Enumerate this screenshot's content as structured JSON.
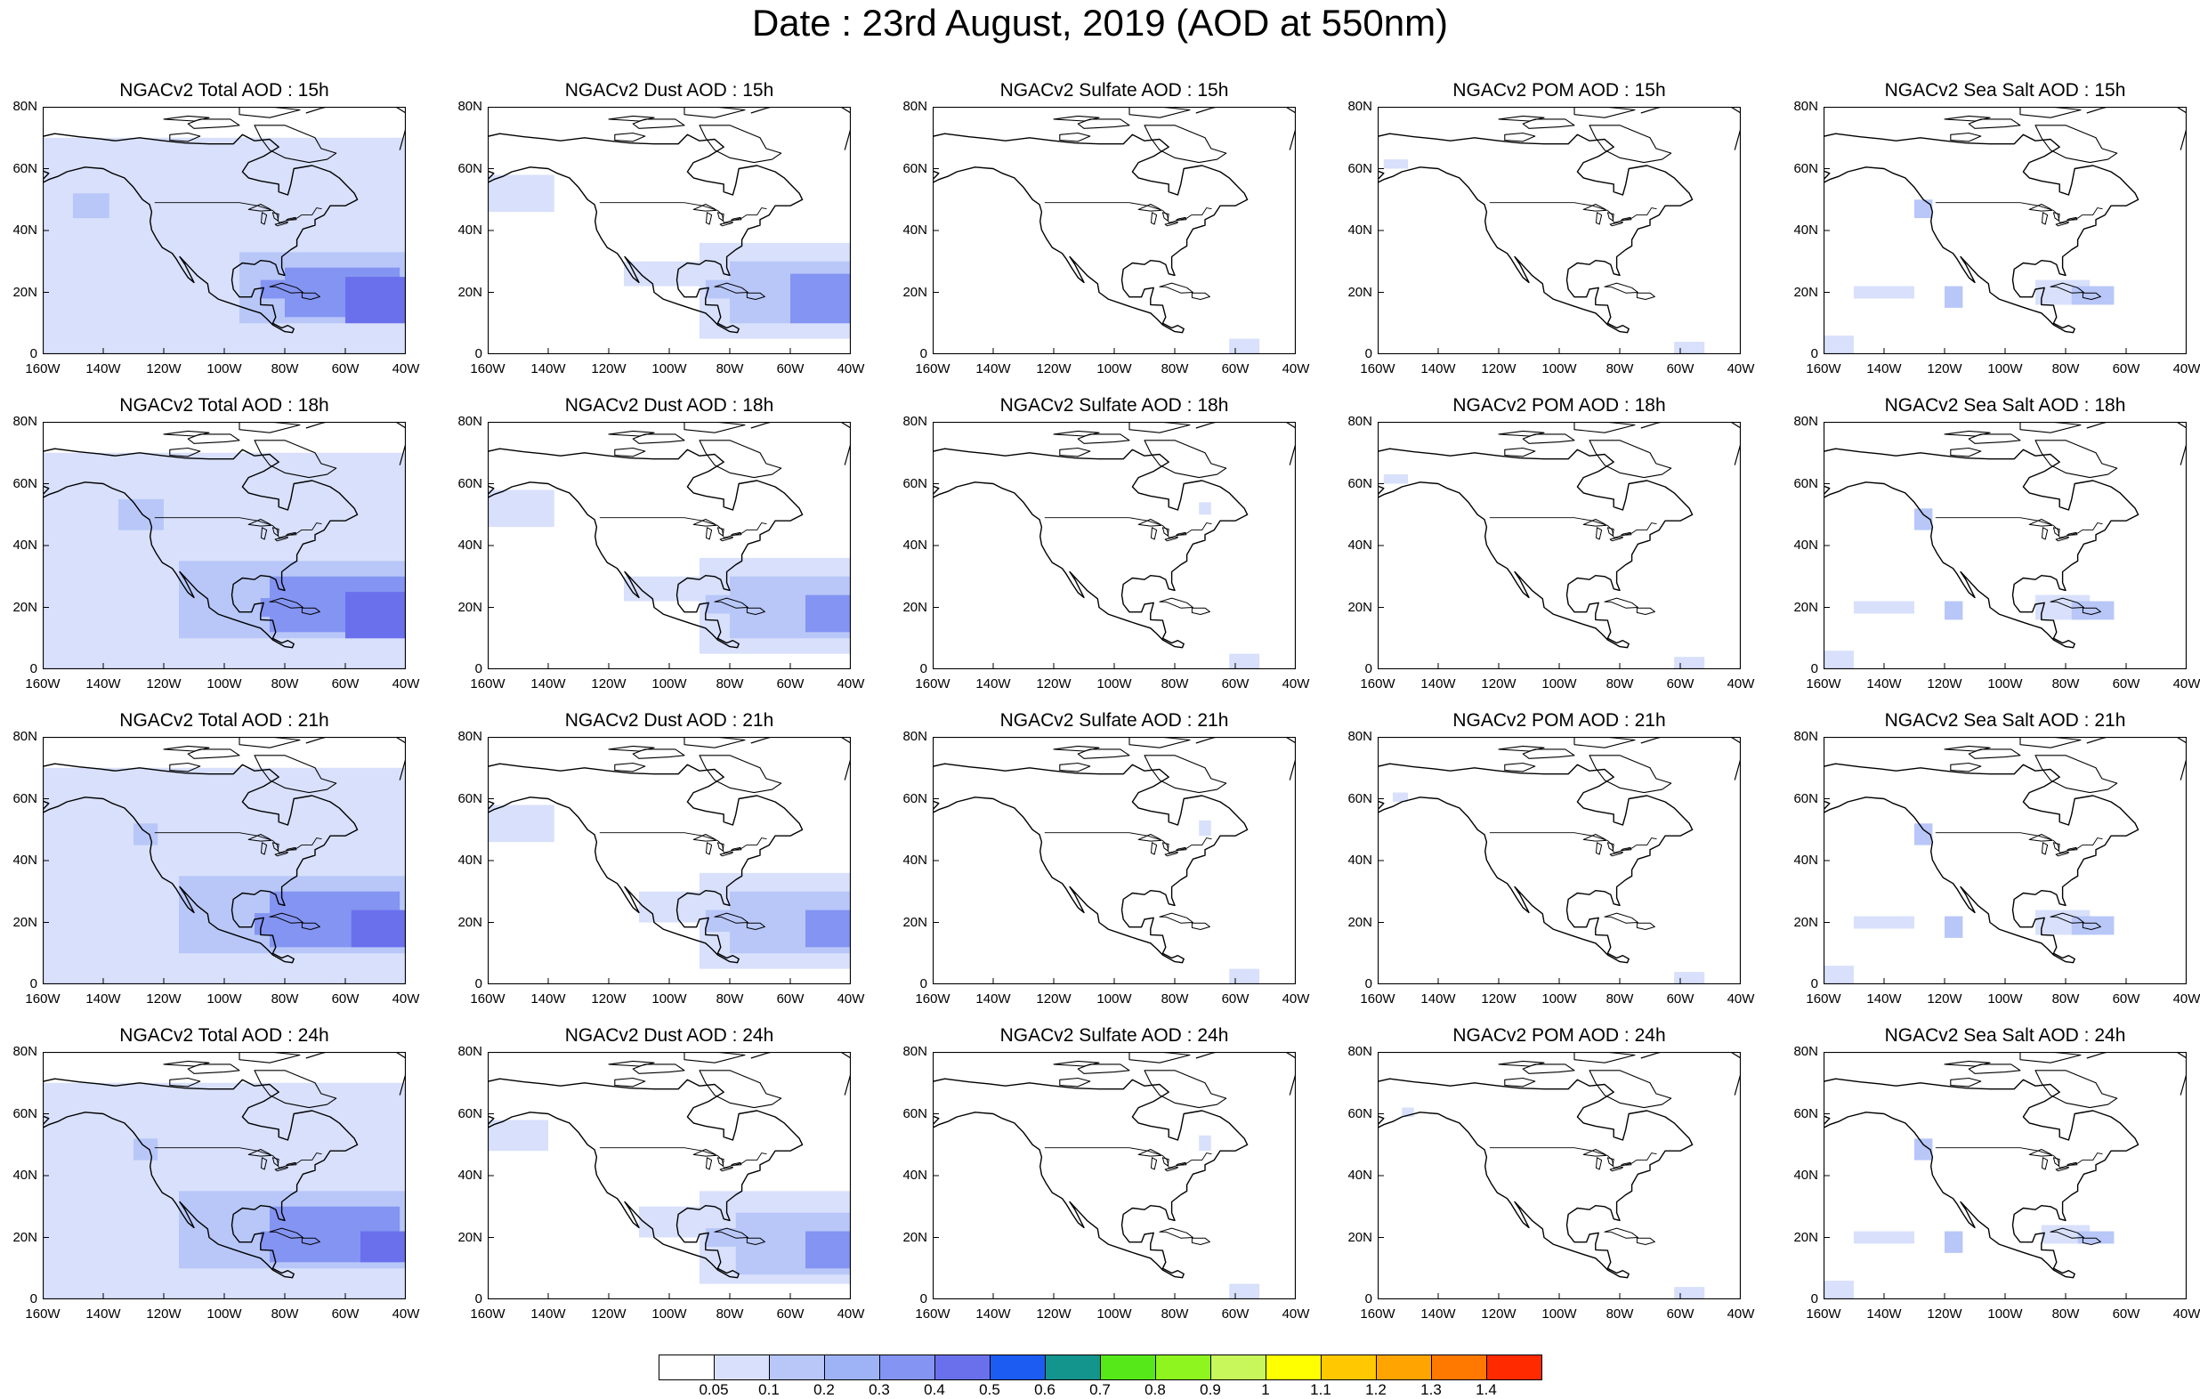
{
  "title": "Date : 23rd August, 2019 (AOD at 550nm)",
  "panels": [
    {
      "title": "NGACv2 Total AOD : 15h",
      "variable": "total",
      "hour": "15h"
    },
    {
      "title": "NGACv2 Dust AOD : 15h",
      "variable": "dust",
      "hour": "15h"
    },
    {
      "title": "NGACv2 Sulfate AOD : 15h",
      "variable": "sulfate",
      "hour": "15h"
    },
    {
      "title": "NGACv2 POM AOD : 15h",
      "variable": "pom",
      "hour": "15h"
    },
    {
      "title": "NGACv2 Sea Salt AOD : 15h",
      "variable": "seasalt",
      "hour": "15h"
    },
    {
      "title": "NGACv2 Total AOD : 18h",
      "variable": "total",
      "hour": "18h"
    },
    {
      "title": "NGACv2 Dust AOD : 18h",
      "variable": "dust",
      "hour": "18h"
    },
    {
      "title": "NGACv2 Sulfate AOD : 18h",
      "variable": "sulfate",
      "hour": "18h"
    },
    {
      "title": "NGACv2 POM AOD : 18h",
      "variable": "pom",
      "hour": "18h"
    },
    {
      "title": "NGACv2 Sea Salt AOD : 18h",
      "variable": "seasalt",
      "hour": "18h"
    },
    {
      "title": "NGACv2 Total AOD : 21h",
      "variable": "total",
      "hour": "21h"
    },
    {
      "title": "NGACv2 Dust AOD : 21h",
      "variable": "dust",
      "hour": "21h"
    },
    {
      "title": "NGACv2 Sulfate AOD : 21h",
      "variable": "sulfate",
      "hour": "21h"
    },
    {
      "title": "NGACv2 POM AOD : 21h",
      "variable": "pom",
      "hour": "21h"
    },
    {
      "title": "NGACv2 Sea Salt AOD : 21h",
      "variable": "seasalt",
      "hour": "21h"
    },
    {
      "title": "NGACv2 Total AOD : 24h",
      "variable": "total",
      "hour": "24h"
    },
    {
      "title": "NGACv2 Dust AOD : 24h",
      "variable": "dust",
      "hour": "24h"
    },
    {
      "title": "NGACv2 Sulfate AOD : 24h",
      "variable": "sulfate",
      "hour": "24h"
    },
    {
      "title": "NGACv2 POM AOD : 24h",
      "variable": "pom",
      "hour": "24h"
    },
    {
      "title": "NGACv2 Sea Salt  AOD : 24h",
      "variable": "seasalt",
      "hour": "24h"
    }
  ],
  "lat_labels": [
    "80N",
    "60N",
    "40N",
    "20N",
    "0"
  ],
  "lon_labels": [
    "160W",
    "140W",
    "120W",
    "100W",
    "80W",
    "60W",
    "40W"
  ],
  "colorbar": {
    "labels": [
      "0.05",
      "0.1",
      "0.2",
      "0.3",
      "0.4",
      "0.5",
      "0.6",
      "0.7",
      "0.8",
      "0.9",
      "1",
      "1.1",
      "1.2",
      "1.3",
      "1.4"
    ],
    "colors": [
      "#ffffff",
      "#d8e0fb",
      "#b8c7f8",
      "#9eb3f6",
      "#8494f2",
      "#6a70ec",
      "#1c5cf2",
      "#13948c",
      "#56e819",
      "#8ff51f",
      "#c8f75c",
      "#ffff00",
      "#ffc800",
      "#ffa400",
      "#ff7800",
      "#ff2a00"
    ]
  },
  "colors": {
    "coastline": "#000000",
    "field_light": "#d8e0fb",
    "field_mid": "#b8c7f8",
    "field_dark": "#8494f2",
    "field_darkest": "#6a70ec"
  }
}
